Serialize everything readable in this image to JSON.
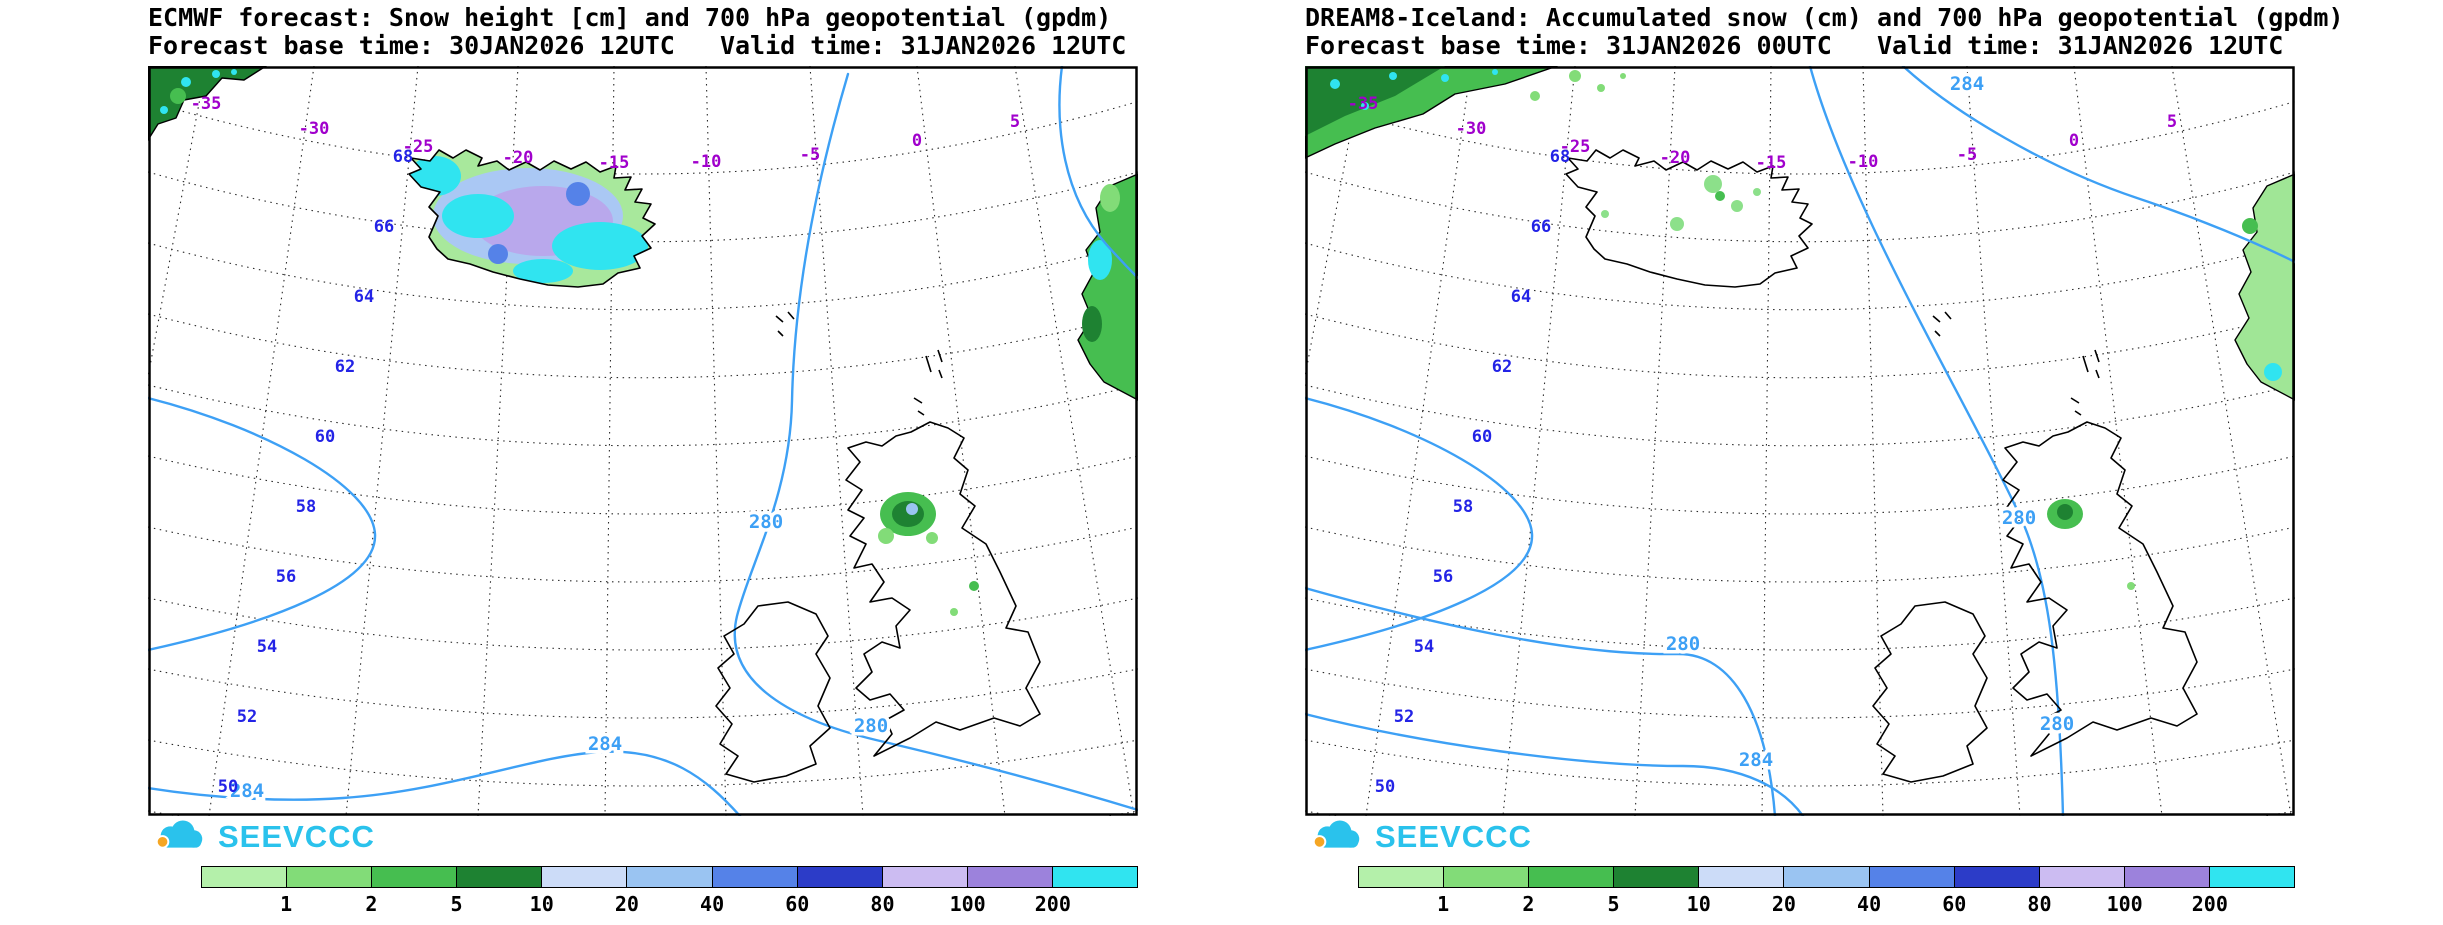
{
  "panels": [
    {
      "title": "ECMWF forecast: Snow height [cm] and 700 hPa geopotential (gpdm)",
      "subtitle": "Forecast base time: 30JAN2026 12UTC   Valid time: 31JAN2026 12UTC",
      "lat_labels": [
        "68",
        "66",
        "64",
        "62",
        "60",
        "58",
        "56",
        "54",
        "52",
        "50"
      ],
      "lon_labels": [
        "-35",
        "-30",
        "-25",
        "-20",
        "-15",
        "-10",
        "-5",
        "0",
        "5"
      ],
      "contour_labels": [
        "280",
        "280",
        "284",
        "284"
      ],
      "logo_text": "SEEVCCC"
    },
    {
      "title": "DREAM8-Iceland: Accumulated snow (cm) and 700 hPa geopotential (gpdm)",
      "subtitle": "Forecast base time: 31JAN2026 00UTC   Valid time: 31JAN2026 12UTC",
      "lat_labels": [
        "68",
        "66",
        "64",
        "62",
        "60",
        "58",
        "56",
        "54",
        "52",
        "50"
      ],
      "lon_labels": [
        "-35",
        "-30",
        "-25",
        "-20",
        "-15",
        "-10",
        "-5",
        "0",
        "5"
      ],
      "contour_labels": [
        "284",
        "280",
        "280",
        "280",
        "284"
      ],
      "logo_text": "SEEVCCC"
    }
  ],
  "legend": {
    "values": [
      "1",
      "2",
      "5",
      "10",
      "20",
      "40",
      "60",
      "80",
      "100",
      "200"
    ],
    "colors": [
      "#b4f0aa",
      "#82dc78",
      "#46be50",
      "#1e8232",
      "#ccdcf8",
      "#9ac4f2",
      "#5582e8",
      "#2c3cc8",
      "#ccbcf2",
      "#9c82dc",
      "#30e4f0"
    ]
  },
  "colors": {
    "contour_line": "#3da0f5",
    "lat_label": "#2323e6",
    "lon_label": "#a000cc",
    "logo": "#2ac2ec"
  }
}
